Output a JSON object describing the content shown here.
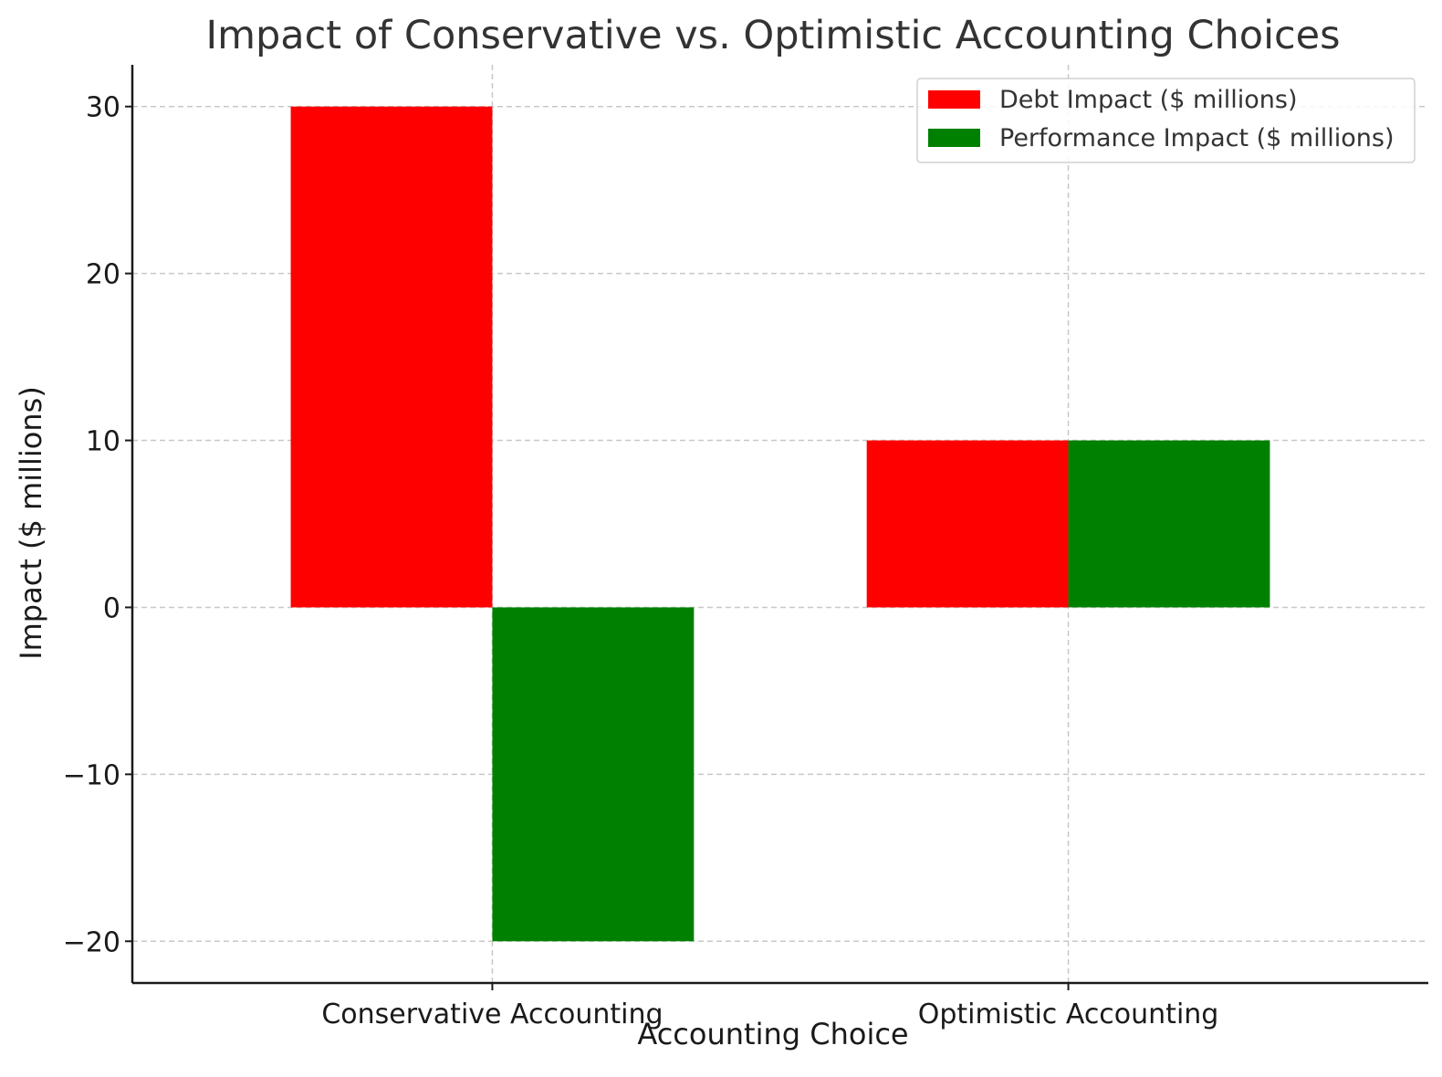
{
  "chart_data": {
    "type": "bar",
    "title": "Impact of Conservative vs. Optimistic Accounting Choices",
    "xlabel": "Accounting Choice",
    "ylabel": "Impact ($ millions)",
    "categories": [
      "Conservative Accounting",
      "Optimistic Accounting"
    ],
    "series": [
      {
        "name": "Debt Impact ($ millions)",
        "values": [
          30,
          10
        ],
        "color": "#ff0000"
      },
      {
        "name": "Performance Impact ($ millions)",
        "values": [
          -20,
          10
        ],
        "color": "#008000"
      }
    ],
    "ylim": [
      -22.5,
      32.5
    ],
    "yticks": [
      -20,
      -10,
      0,
      10,
      20,
      30
    ],
    "ytick_labels": [
      "−20",
      "−10",
      "0",
      "10",
      "20",
      "30"
    ],
    "grid": true,
    "legend_position": "top-right"
  }
}
